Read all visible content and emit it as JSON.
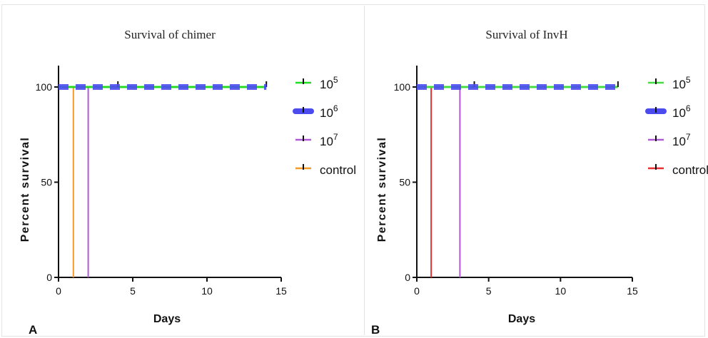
{
  "chart_data": [
    {
      "type": "line",
      "panel_label": "A",
      "title": "Survival of chimer",
      "xlabel": "Days",
      "ylabel": "Percent survival",
      "xlim": [
        0,
        15
      ],
      "ylim": [
        0,
        100
      ],
      "xticks": [
        0,
        5,
        10,
        15
      ],
      "yticks": [
        0,
        50,
        100
      ],
      "grid": false,
      "legend_position": "right",
      "series": [
        {
          "name_base": "10",
          "name_exp": "5",
          "color": "#22dd22",
          "style": "solid",
          "x": [
            0,
            14
          ],
          "y": [
            100,
            100
          ]
        },
        {
          "name_base": "10",
          "name_exp": "6",
          "color": "#4b4bf0",
          "style": "dashed",
          "x": [
            0,
            14
          ],
          "y": [
            100,
            100
          ]
        },
        {
          "name_base": "10",
          "name_exp": "7",
          "color": "#b05ad8",
          "style": "solid",
          "x": [
            0,
            2,
            2
          ],
          "y": [
            100,
            100,
            0
          ]
        },
        {
          "name": "control",
          "color": "#f39a2b",
          "style": "solid",
          "x": [
            0,
            1,
            1
          ],
          "y": [
            100,
            100,
            0
          ]
        }
      ]
    },
    {
      "type": "line",
      "panel_label": "B",
      "title": "Survival of InvH",
      "xlabel": "Days",
      "ylabel": "Percent survival",
      "xlim": [
        0,
        15
      ],
      "ylim": [
        0,
        100
      ],
      "xticks": [
        0,
        5,
        10,
        15
      ],
      "yticks": [
        0,
        50,
        100
      ],
      "grid": false,
      "legend_position": "right",
      "series": [
        {
          "name_base": "10",
          "name_exp": "5",
          "color": "#44dd44",
          "style": "solid",
          "x": [
            0,
            14
          ],
          "y": [
            100,
            100
          ]
        },
        {
          "name_base": "10",
          "name_exp": "6",
          "color": "#4b4bf0",
          "style": "dashed",
          "x": [
            0,
            14
          ],
          "y": [
            100,
            100
          ]
        },
        {
          "name_base": "10",
          "name_exp": "7",
          "color": "#b05ad8",
          "style": "solid",
          "x": [
            0,
            3,
            3
          ],
          "y": [
            100,
            100,
            0
          ]
        },
        {
          "name": "control",
          "color": "#e83030",
          "style": "solid",
          "x": [
            0,
            1,
            1
          ],
          "y": [
            100,
            100,
            0
          ]
        }
      ]
    }
  ]
}
